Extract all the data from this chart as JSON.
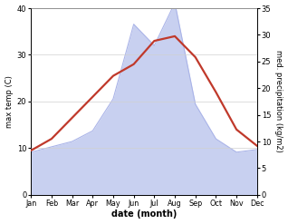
{
  "months": [
    "Jan",
    "Feb",
    "Mar",
    "Apr",
    "May",
    "Jun",
    "Jul",
    "Aug",
    "Sep",
    "Oct",
    "Nov",
    "Dec"
  ],
  "temperature": [
    9.5,
    12.0,
    16.5,
    21.0,
    25.5,
    28.0,
    33.0,
    34.0,
    29.5,
    22.0,
    14.0,
    10.5
  ],
  "precipitation": [
    8.0,
    9.0,
    10.0,
    12.0,
    18.0,
    32.0,
    28.0,
    36.0,
    17.0,
    10.5,
    8.0,
    8.5
  ],
  "temp_color": "#c0392b",
  "precip_fill_color": "#c8d0f0",
  "precip_edge_color": "#aab4e8",
  "xlabel": "date (month)",
  "ylabel_left": "max temp (C)",
  "ylabel_right": "med. precipitation (kg/m2)",
  "ylim_left": [
    0,
    40
  ],
  "ylim_right": [
    0,
    35
  ],
  "yticks_left": [
    0,
    10,
    20,
    30,
    40
  ],
  "yticks_right": [
    0,
    5,
    10,
    15,
    20,
    25,
    30,
    35
  ],
  "bg_color": "#ffffff",
  "grid_color": "#d0d0d0"
}
